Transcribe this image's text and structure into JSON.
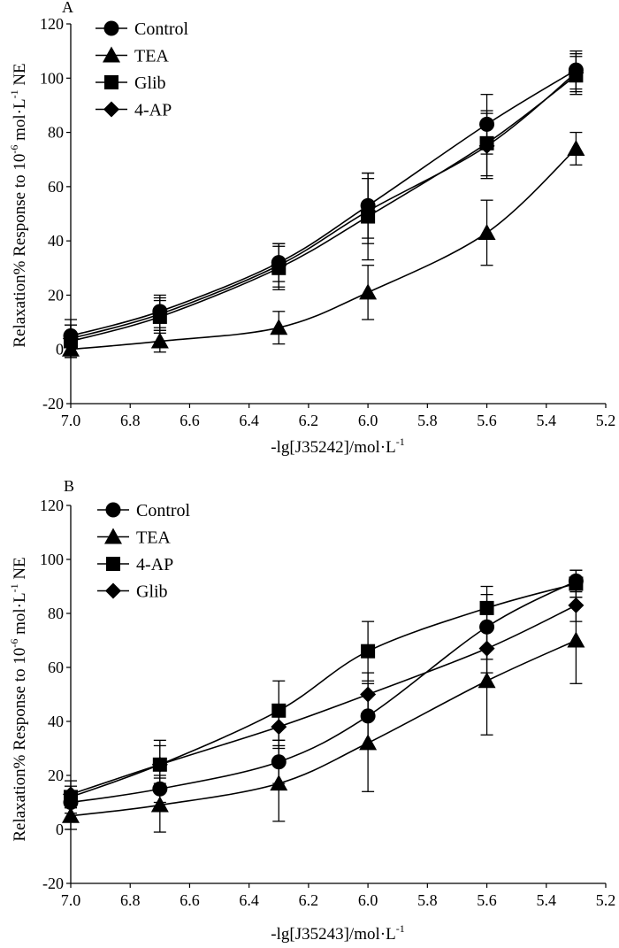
{
  "chart_data": [
    {
      "type": "line",
      "panel_label": "A",
      "xlabel": "-lg[J35242]/mol·L",
      "xlabel_superscript": "-1",
      "ylabel_main": "Relaxation% Response to 10",
      "ylabel_exp1": "-6",
      "ylabel_mid": " mol·L",
      "ylabel_exp2": "-1",
      "ylabel_end": " NE",
      "x_ticks": [
        "7.0",
        "6.8",
        "6.6",
        "6.4",
        "6.2",
        "6.0",
        "5.8",
        "5.6",
        "5.4",
        "5.2"
      ],
      "y_ticks": [
        "-20",
        "0",
        "20",
        "40",
        "60",
        "80",
        "100",
        "120"
      ],
      "xlim": [
        7.0,
        5.2
      ],
      "ylim": [
        -20,
        120
      ],
      "x": [
        7.0,
        6.7,
        6.3,
        6.0,
        5.6,
        5.3
      ],
      "series": [
        {
          "name": "Control",
          "marker": "circle",
          "values": [
            5,
            14,
            32,
            53,
            83,
            103
          ],
          "errors": [
            6,
            6,
            7,
            12,
            11,
            7
          ]
        },
        {
          "name": "TEA",
          "marker": "triangle",
          "values": [
            0,
            3,
            8,
            21,
            43,
            74
          ],
          "errors": [
            3,
            4,
            6,
            10,
            12,
            6
          ]
        },
        {
          "name": "Glib",
          "marker": "square",
          "values": [
            3,
            12,
            30,
            49,
            76,
            101
          ],
          "errors": [
            6,
            6,
            8,
            16,
            12,
            7
          ]
        },
        {
          "name": "4-AP",
          "marker": "diamond",
          "values": [
            4,
            13,
            31,
            51,
            75,
            102
          ],
          "errors": [
            5,
            6,
            8,
            12,
            12,
            7
          ]
        }
      ]
    },
    {
      "type": "line",
      "panel_label": "B",
      "xlabel": "-lg[J35243]/mol·L",
      "xlabel_superscript": "-1",
      "ylabel_main": "Relaxation% Response to 10",
      "ylabel_exp1": "-6",
      "ylabel_mid": " mol·L",
      "ylabel_exp2": "-1",
      "ylabel_end": " NE",
      "x_ticks": [
        "7.0",
        "6.8",
        "6.6",
        "6.4",
        "6.2",
        "6.0",
        "5.8",
        "5.6",
        "5.4",
        "5.2"
      ],
      "y_ticks": [
        "-20",
        "0",
        "20",
        "40",
        "60",
        "80",
        "100",
        "120"
      ],
      "xlim": [
        7.0,
        5.2
      ],
      "ylim": [
        -20,
        120
      ],
      "x": [
        7.0,
        6.7,
        6.3,
        6.0,
        5.6,
        5.3
      ],
      "series": [
        {
          "name": "Control",
          "marker": "circle",
          "values": [
            10,
            15,
            25,
            42,
            75,
            92
          ],
          "errors": [
            4,
            5,
            8,
            12,
            12,
            4
          ]
        },
        {
          "name": "TEA",
          "marker": "triangle",
          "values": [
            5,
            9,
            17,
            32,
            55,
            70
          ],
          "errors": [
            5,
            10,
            14,
            18,
            20,
            16
          ]
        },
        {
          "name": "4-AP",
          "marker": "square",
          "values": [
            12,
            24,
            44,
            66,
            82,
            91
          ],
          "errors": [
            4,
            9,
            11,
            11,
            8,
            5
          ]
        },
        {
          "name": "Glib",
          "marker": "diamond",
          "values": [
            13,
            24,
            38,
            50,
            67,
            83
          ],
          "errors": [
            5,
            7,
            8,
            8,
            9,
            6
          ]
        }
      ]
    }
  ]
}
